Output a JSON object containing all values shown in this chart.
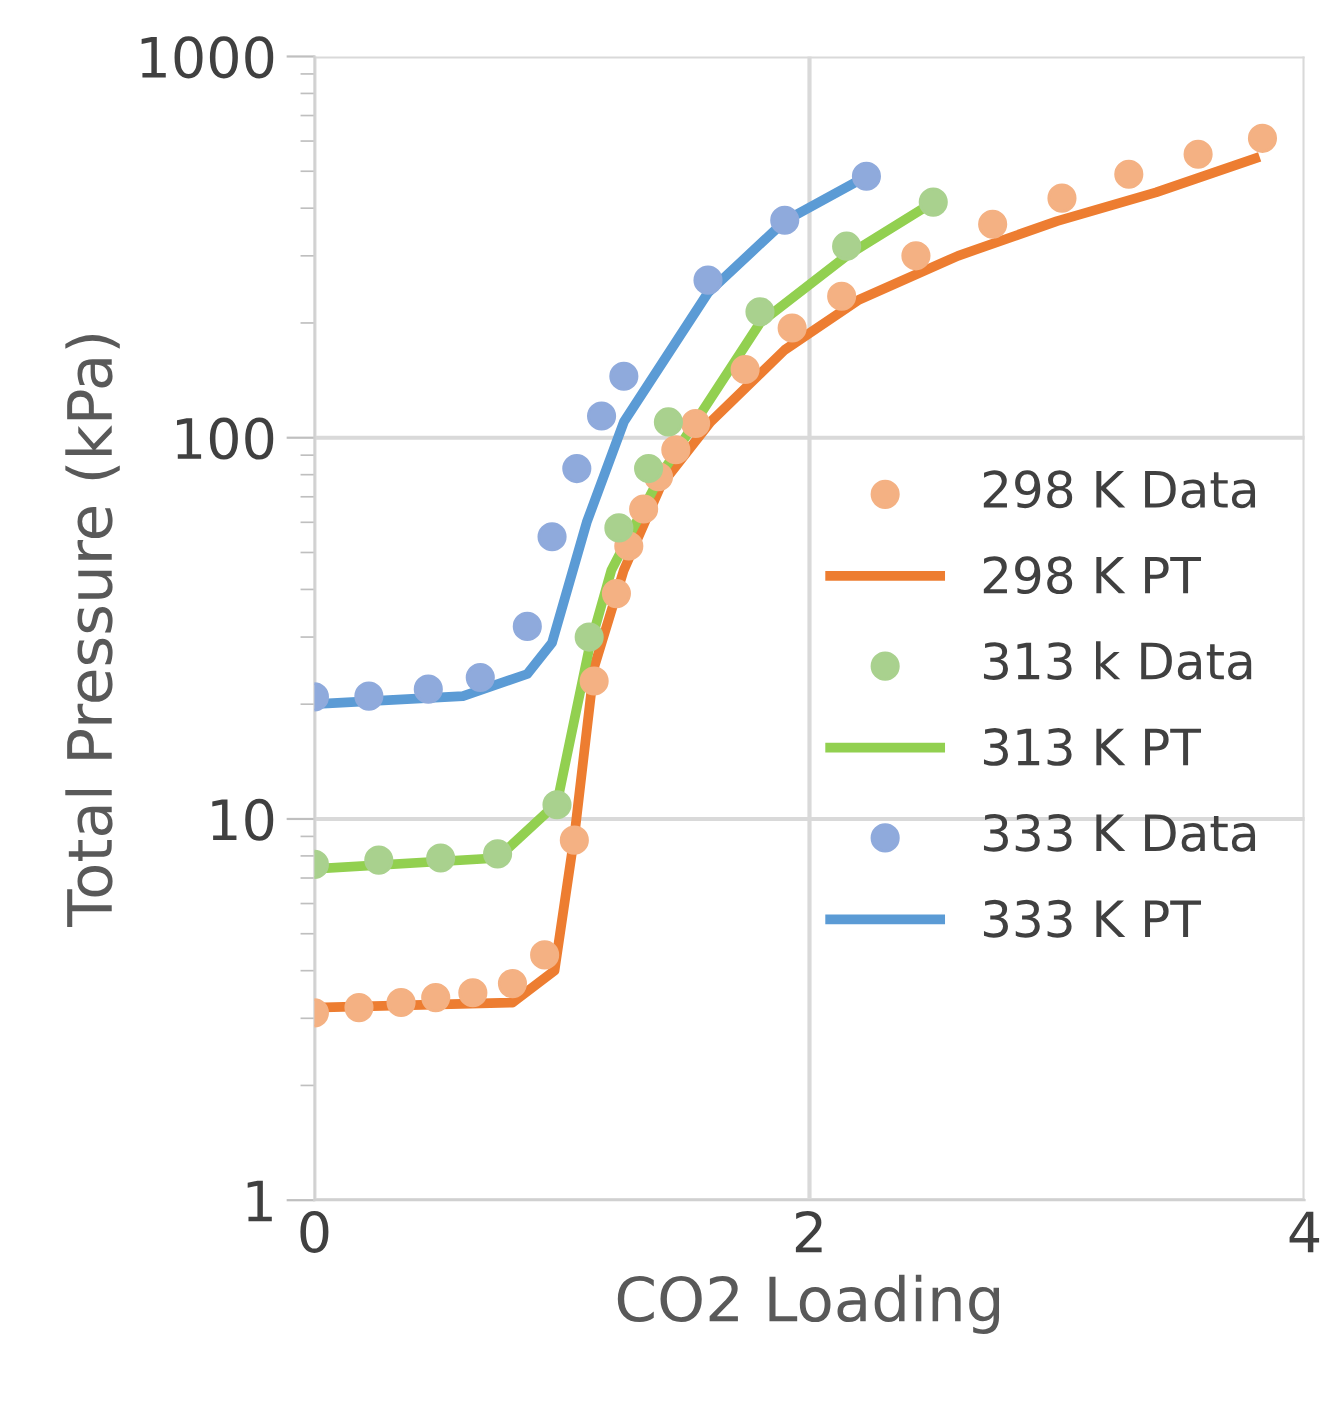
{
  "chart_data": {
    "type": "line",
    "xlabel": "CO2 Loading",
    "ylabel": "Total Pressure (kPa)",
    "log": "y",
    "xlim": [
      0,
      4
    ],
    "xticks": [
      0,
      2,
      4
    ],
    "ylim": [
      1,
      1000
    ],
    "yticks": [
      1,
      10,
      100,
      1000
    ],
    "grid": true,
    "legend": "right",
    "series": [
      {
        "name": "298 K Data",
        "type": "scatter",
        "marker": "circle",
        "color": "#f4b183",
        "x": [
          0,
          0.18,
          0.35,
          0.49,
          0.64,
          0.8,
          0.93,
          1.05,
          1.13,
          1.22,
          1.27,
          1.33,
          1.39,
          1.46,
          1.54,
          1.74,
          1.93,
          2.13,
          2.43,
          2.74,
          3.02,
          3.29,
          3.57,
          3.83
        ],
        "values": [
          3.1,
          3.2,
          3.3,
          3.4,
          3.5,
          3.7,
          4.4,
          8.8,
          23,
          39,
          52,
          65,
          79,
          93,
          109,
          151,
          194,
          235,
          300,
          363,
          425,
          491,
          554,
          610
        ]
      },
      {
        "name": "298 K PT",
        "color": "#ed7d31",
        "x": [
          0,
          0.8,
          0.97,
          1.05,
          1.13,
          1.25,
          1.4,
          1.6,
          1.9,
          2.2,
          2.6,
          3.0,
          3.4,
          3.8
        ],
        "values": [
          3.2,
          3.3,
          4.0,
          9,
          25,
          45,
          75,
          110,
          170,
          230,
          300,
          370,
          440,
          540
        ]
      },
      {
        "name": "313 k Data",
        "type": "scatter",
        "marker": "circle",
        "color": "#a9d18e",
        "x": [
          0,
          0.26,
          0.51,
          0.74,
          0.98,
          1.11,
          1.23,
          1.35,
          1.43,
          1.8,
          2.15,
          2.5
        ],
        "values": [
          7.6,
          7.8,
          7.9,
          8.1,
          10.9,
          30,
          58,
          83,
          110,
          214,
          318,
          415
        ]
      },
      {
        "name": "313 K PT",
        "color": "#92d050",
        "x": [
          0,
          0.74,
          0.98,
          1.11,
          1.2,
          1.4,
          1.8,
          2.15,
          2.5
        ],
        "values": [
          7.4,
          7.9,
          11,
          28,
          45,
          80,
          200,
          300,
          415
        ]
      },
      {
        "name": "333 K Data",
        "type": "scatter",
        "marker": "circle",
        "color": "#8faadc",
        "x": [
          0,
          0.22,
          0.46,
          0.67,
          0.86,
          0.96,
          1.06,
          1.16,
          1.25,
          1.59,
          1.9,
          2.23
        ],
        "values": [
          20.9,
          21,
          21.9,
          23.5,
          32,
          55,
          83,
          114,
          145,
          259,
          372,
          485
        ]
      },
      {
        "name": "333 K PT",
        "color": "#5b9bd5",
        "x": [
          0,
          0.6,
          0.86,
          0.96,
          1.1,
          1.25,
          1.59,
          1.9,
          2.23
        ],
        "values": [
          20,
          21,
          24,
          29,
          60,
          110,
          240,
          370,
          485
        ]
      }
    ]
  }
}
